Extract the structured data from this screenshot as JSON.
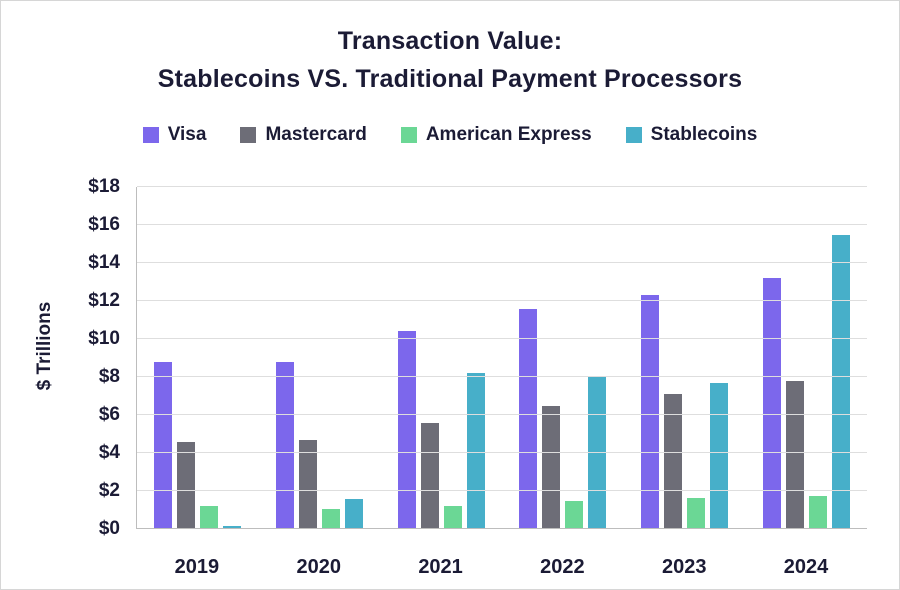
{
  "chart": {
    "title_line1": "Transaction Value:",
    "title_line2": "Stablecoins VS. Traditional Payment Processors"
  },
  "colors": {
    "text": "#1b1b35",
    "grid": "#dedede",
    "axis": "#bdbdbd",
    "background": "#ffffff"
  },
  "chart_data": {
    "type": "bar",
    "title": "Transaction Value: Stablecoins VS. Traditional Payment Processors",
    "categories": [
      "2019",
      "2020",
      "2021",
      "2022",
      "2023",
      "2024"
    ],
    "series": [
      {
        "name": "Visa",
        "color": "#7C67EC",
        "values": [
          8.8,
          8.8,
          10.4,
          11.6,
          12.3,
          13.2
        ]
      },
      {
        "name": "Mastercard",
        "color": "#6D6D77",
        "values": [
          4.6,
          4.7,
          5.6,
          6.5,
          7.1,
          7.8
        ]
      },
      {
        "name": "American Express",
        "color": "#6BD795",
        "values": [
          1.2,
          1.05,
          1.2,
          1.5,
          1.65,
          1.75
        ]
      },
      {
        "name": "Stablecoins",
        "color": "#47AFC9",
        "values": [
          0.15,
          1.6,
          8.2,
          8.05,
          7.7,
          15.5
        ]
      }
    ],
    "xlabel": "",
    "ylabel": "$ Trillions",
    "ylim": [
      0,
      18
    ],
    "ytick_step": 2,
    "ytick_prefix": "$",
    "grid": true,
    "legend_position": "top"
  }
}
